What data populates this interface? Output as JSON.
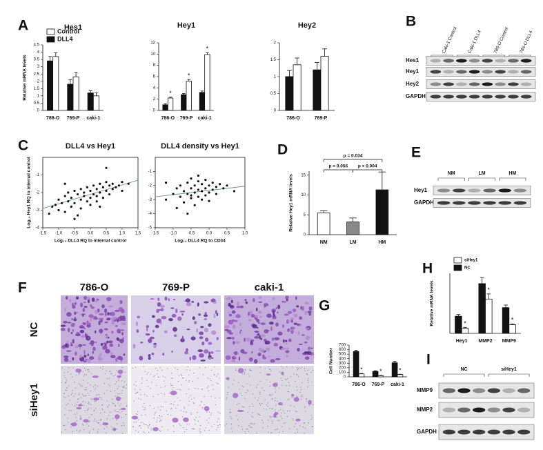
{
  "panel_labels": [
    "A",
    "B",
    "C",
    "D",
    "E",
    "F",
    "G",
    "H",
    "I"
  ],
  "chart_data": [
    {
      "type": "bar",
      "title": "Hes1",
      "ylabel": "Relative mRNA levels",
      "categories": [
        "786-O",
        "769-P",
        "caki-1"
      ],
      "series": [
        {
          "name": "DLL4",
          "color": "#111111",
          "values": [
            3.4,
            1.8,
            1.2
          ],
          "errors": [
            0.3,
            0.3,
            0.15
          ]
        },
        {
          "name": "Control",
          "color": "#ffffff",
          "values": [
            3.7,
            2.3,
            1.0
          ],
          "errors": [
            0.25,
            0.3,
            0.2
          ]
        }
      ],
      "ylim": [
        0,
        4.5
      ],
      "yticks": [
        0,
        0.5,
        1,
        1.5,
        2,
        2.5,
        3,
        3.5,
        4,
        4.5
      ],
      "legend": "upper left"
    },
    {
      "type": "bar",
      "title": "Hey1",
      "categories": [
        "786-O",
        "769-P",
        "caki-1"
      ],
      "series": [
        {
          "color": "#111111",
          "values": [
            1.0,
            2.8,
            3.2
          ],
          "errors": [
            0.2,
            0.2,
            0.25
          ]
        },
        {
          "color": "#ffffff",
          "values": [
            2.2,
            5.2,
            9.9
          ],
          "errors": [
            0.15,
            0.3,
            0.35
          ],
          "marks": [
            "*",
            "*",
            "*"
          ]
        }
      ],
      "ylim": [
        0,
        12
      ],
      "yticks": [
        0,
        2,
        4,
        6,
        8,
        10,
        12
      ]
    },
    {
      "type": "bar",
      "title": "Hey2",
      "categories": [
        "786-O",
        "769-P"
      ],
      "series": [
        {
          "color": "#111111",
          "values": [
            1.0,
            1.2
          ],
          "errors": [
            0.18,
            0.22
          ]
        },
        {
          "color": "#ffffff",
          "values": [
            1.35,
            1.6
          ],
          "errors": [
            0.2,
            0.22
          ]
        }
      ],
      "ylim": [
        0,
        2
      ],
      "yticks": [
        0,
        0.5,
        1,
        1.5,
        2
      ]
    },
    {
      "type": "scatter",
      "title": "DLL4 vs Hey1",
      "xlabel": "Log₁₀ DLL4 RQ to internal control",
      "ylabel": "Log₁₀ Hey1 RQ to internal control",
      "color": "#111111",
      "x": [
        -1.3,
        -1.2,
        -1.1,
        -1.0,
        -1.0,
        -0.9,
        -0.8,
        -0.8,
        -0.7,
        -0.7,
        -0.6,
        -0.6,
        -0.5,
        -0.5,
        -0.4,
        -0.4,
        -0.3,
        -0.3,
        -0.3,
        -0.2,
        -0.2,
        -0.1,
        -0.1,
        0.0,
        0.0,
        0.0,
        0.1,
        0.1,
        0.2,
        0.2,
        0.2,
        0.3,
        0.3,
        0.4,
        0.4,
        0.5,
        0.5,
        0.6,
        0.6,
        0.7,
        0.7,
        0.8,
        0.9,
        1.0,
        1.0,
        1.2,
        0.5,
        -0.5,
        0.3,
        -0.8
      ],
      "y": [
        -3.2,
        -2.8,
        -2.7,
        -3.0,
        -2.4,
        -2.6,
        -2.2,
        -3.1,
        -2.5,
        -2.0,
        -2.3,
        -2.8,
        -1.9,
        -2.6,
        -2.1,
        -3.3,
        -1.8,
        -2.4,
        -2.9,
        -2.0,
        -2.2,
        -1.7,
        -2.5,
        -1.9,
        -2.3,
        -2.7,
        -1.6,
        -2.1,
        -1.8,
        -2.2,
        -2.5,
        -1.5,
        -2.0,
        -1.7,
        -2.3,
        -1.4,
        -1.9,
        -1.6,
        -2.1,
        -1.5,
        -1.8,
        -1.7,
        -1.6,
        -1.4,
        -1.9,
        -1.5,
        -0.6,
        -3.5,
        -2.8,
        -1.5
      ],
      "fit": {
        "color": "#5a8a7a",
        "x": [
          -1.5,
          1.5
        ],
        "y": [
          -2.9,
          -1.3
        ]
      },
      "xlim": [
        -1.5,
        1.5
      ],
      "xticks": [
        {
          "value": -1.5,
          "label": "-1.5"
        },
        {
          "value": -1,
          "label": "-1.0"
        },
        {
          "value": -0.5,
          "label": "-0.5"
        },
        {
          "value": 0,
          "label": "0.0"
        },
        {
          "value": 0.5,
          "label": "0.5"
        },
        {
          "value": 1,
          "label": "1.0"
        },
        {
          "value": 1.5,
          "label": "1.5"
        }
      ],
      "ylim": [
        -4,
        0
      ],
      "yticks": [
        -1,
        -2,
        -3,
        -4
      ]
    },
    {
      "type": "scatter",
      "title": "DLL4 density vs Hey1",
      "xlabel": "Log₁₀ DLL4 RQ to CD34",
      "color": "#111111",
      "x": [
        -1.2,
        -1.0,
        -0.9,
        -0.8,
        -0.8,
        -0.7,
        -0.7,
        -0.6,
        -0.6,
        -0.5,
        -0.5,
        -0.5,
        -0.4,
        -0.4,
        -0.4,
        -0.3,
        -0.3,
        -0.3,
        -0.2,
        -0.2,
        -0.2,
        -0.1,
        -0.1,
        -0.1,
        0.0,
        0.0,
        0.1,
        0.1,
        0.2,
        0.2,
        0.3,
        0.4,
        0.5,
        0.7,
        -0.9,
        -0.6,
        -0.3,
        0.0,
        -1.2,
        -0.5
      ],
      "y": [
        -3.0,
        -2.6,
        -2.2,
        -2.8,
        -2.0,
        -2.4,
        -3.2,
        -1.8,
        -2.6,
        -2.2,
        -2.9,
        -1.5,
        -2.0,
        -2.5,
        -3.4,
        -1.7,
        -2.3,
        -2.8,
        -1.9,
        -2.4,
        -3.0,
        -1.6,
        -2.2,
        -2.7,
        -2.0,
        -2.5,
        -1.8,
        -2.3,
        -2.1,
        -2.6,
        -1.9,
        -2.2,
        -2.0,
        -2.4,
        -3.6,
        -4.0,
        -1.3,
        -3.1,
        -1.8,
        -2.7
      ],
      "fit": {
        "color": "#5a8a7a",
        "x": [
          -1.5,
          1.0
        ],
        "y": [
          -2.8,
          -2.05
        ]
      },
      "xlim": [
        -1.5,
        1.0
      ],
      "xticks": [
        {
          "value": -1.5,
          "label": "-1.5"
        },
        {
          "value": -1,
          "label": "-1.0"
        },
        {
          "value": -0.5,
          "label": "-0.5"
        },
        {
          "value": 0,
          "label": "0.0"
        },
        {
          "value": 0.5,
          "label": "0.5"
        },
        {
          "value": 1,
          "label": "1.0"
        }
      ],
      "ylim": [
        -5,
        0
      ],
      "yticks": [
        -1,
        -2,
        -3,
        -4,
        -5
      ]
    },
    {
      "type": "bar",
      "ylabel": "Relative Hey1 mRNA levels",
      "categories": [
        "NM",
        "LM",
        "HM"
      ],
      "values": [
        5.5,
        3.2,
        11.3
      ],
      "errors": [
        0.5,
        1.0,
        4.5
      ],
      "colors": [
        "#ffffff",
        "#888888",
        "#111111"
      ],
      "comparisons": [
        {
          "from": "NM",
          "to": "LM",
          "label": "p = 0.056"
        },
        {
          "from": "LM",
          "to": "HM",
          "label": "p = 0.004"
        },
        {
          "from": "NM",
          "to": "HM",
          "label": "p = 0.034"
        }
      ],
      "ylim": [
        0,
        16
      ],
      "yticks": [
        0,
        5,
        10,
        15
      ]
    },
    {
      "type": "bar",
      "ylabel": "Cell Number",
      "categories": [
        "786-O",
        "769-P",
        "caki-1"
      ],
      "series": [
        {
          "color": "#111111",
          "values": [
            560,
            120,
            310
          ],
          "errors": [
            25,
            15,
            30
          ]
        },
        {
          "color": "#ffffff",
          "values": [
            65,
            25,
            50
          ],
          "errors": [
            10,
            8,
            8
          ],
          "marks": [
            "*",
            "*",
            "*"
          ]
        }
      ],
      "ylim": [
        0,
        700
      ],
      "yticks": [
        0,
        100,
        200,
        300,
        400,
        500,
        600,
        700
      ]
    },
    {
      "type": "bar",
      "ylabel": "Relative mRNA levels",
      "categories": [
        "Hey1",
        "MMP2",
        "MMP9"
      ],
      "series": [
        {
          "name": "NC",
          "color": "#111111",
          "values": [
            1.0,
            2.9,
            1.5
          ],
          "errors": [
            0.1,
            0.35,
            0.15
          ]
        },
        {
          "name": "siHey1",
          "color": "#ffffff",
          "values": [
            0.3,
            2.0,
            0.5
          ],
          "errors": [
            0.05,
            0.3,
            0.05
          ],
          "marks": [
            "*",
            "*",
            "*"
          ]
        }
      ],
      "ylim": [
        0,
        3.5
      ],
      "legend": "upper left"
    }
  ],
  "blots": [
    {
      "columns": [
        "Caki-1 Control",
        "Caki-1 DLL4",
        "786-O Control",
        "786-O DLL4"
      ],
      "rows": [
        "Hes1",
        "Hey1",
        "Hey2",
        "GAPDH"
      ]
    },
    {
      "columns": [
        "NM",
        "LM",
        "HM"
      ],
      "rows": [
        "Hey1",
        "GAPDH"
      ]
    },
    {
      "columns": [
        "NC",
        "siHey1"
      ],
      "rows": [
        "MMP9",
        "MMP2",
        "GAPDH"
      ]
    }
  ],
  "micrographs": {
    "columns": [
      "786-O",
      "769-P",
      "caki-1"
    ],
    "rows": [
      "NC",
      "siHey1"
    ]
  }
}
